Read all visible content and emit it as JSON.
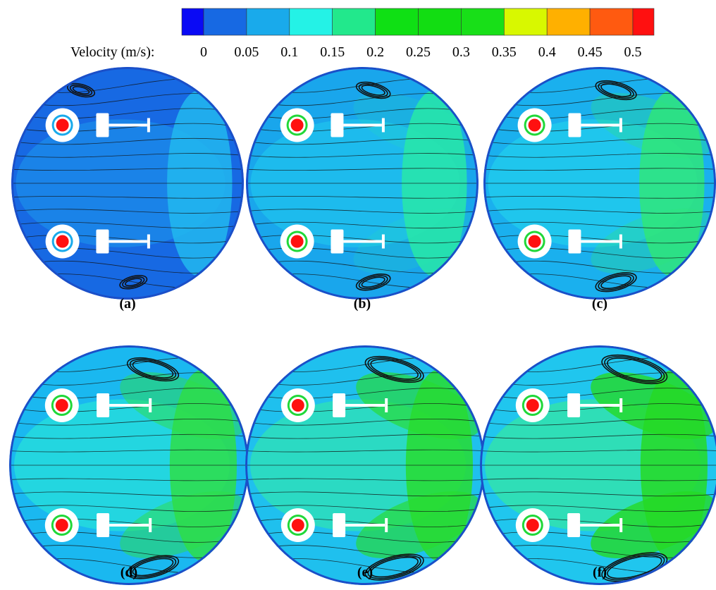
{
  "colorbar": {
    "label": "Velocity (m/s):",
    "ticks": [
      0,
      0.05,
      0.1,
      0.15,
      0.2,
      0.25,
      0.3,
      0.35,
      0.4,
      0.45,
      0.5
    ],
    "colors": [
      "#0a0af5",
      "#1769e3",
      "#19aaeb",
      "#24f2e6",
      "#22e88c",
      "#0fe014",
      "#12dd12",
      "#18df18",
      "#d8f800",
      "#ffb000",
      "#ff5a10",
      "#ff1010"
    ]
  },
  "panels": [
    {
      "label": "(a)"
    },
    {
      "label": "(b)"
    },
    {
      "label": "(c)"
    },
    {
      "label": "(d)"
    },
    {
      "label": "(e)"
    },
    {
      "label": "(f)"
    }
  ]
}
